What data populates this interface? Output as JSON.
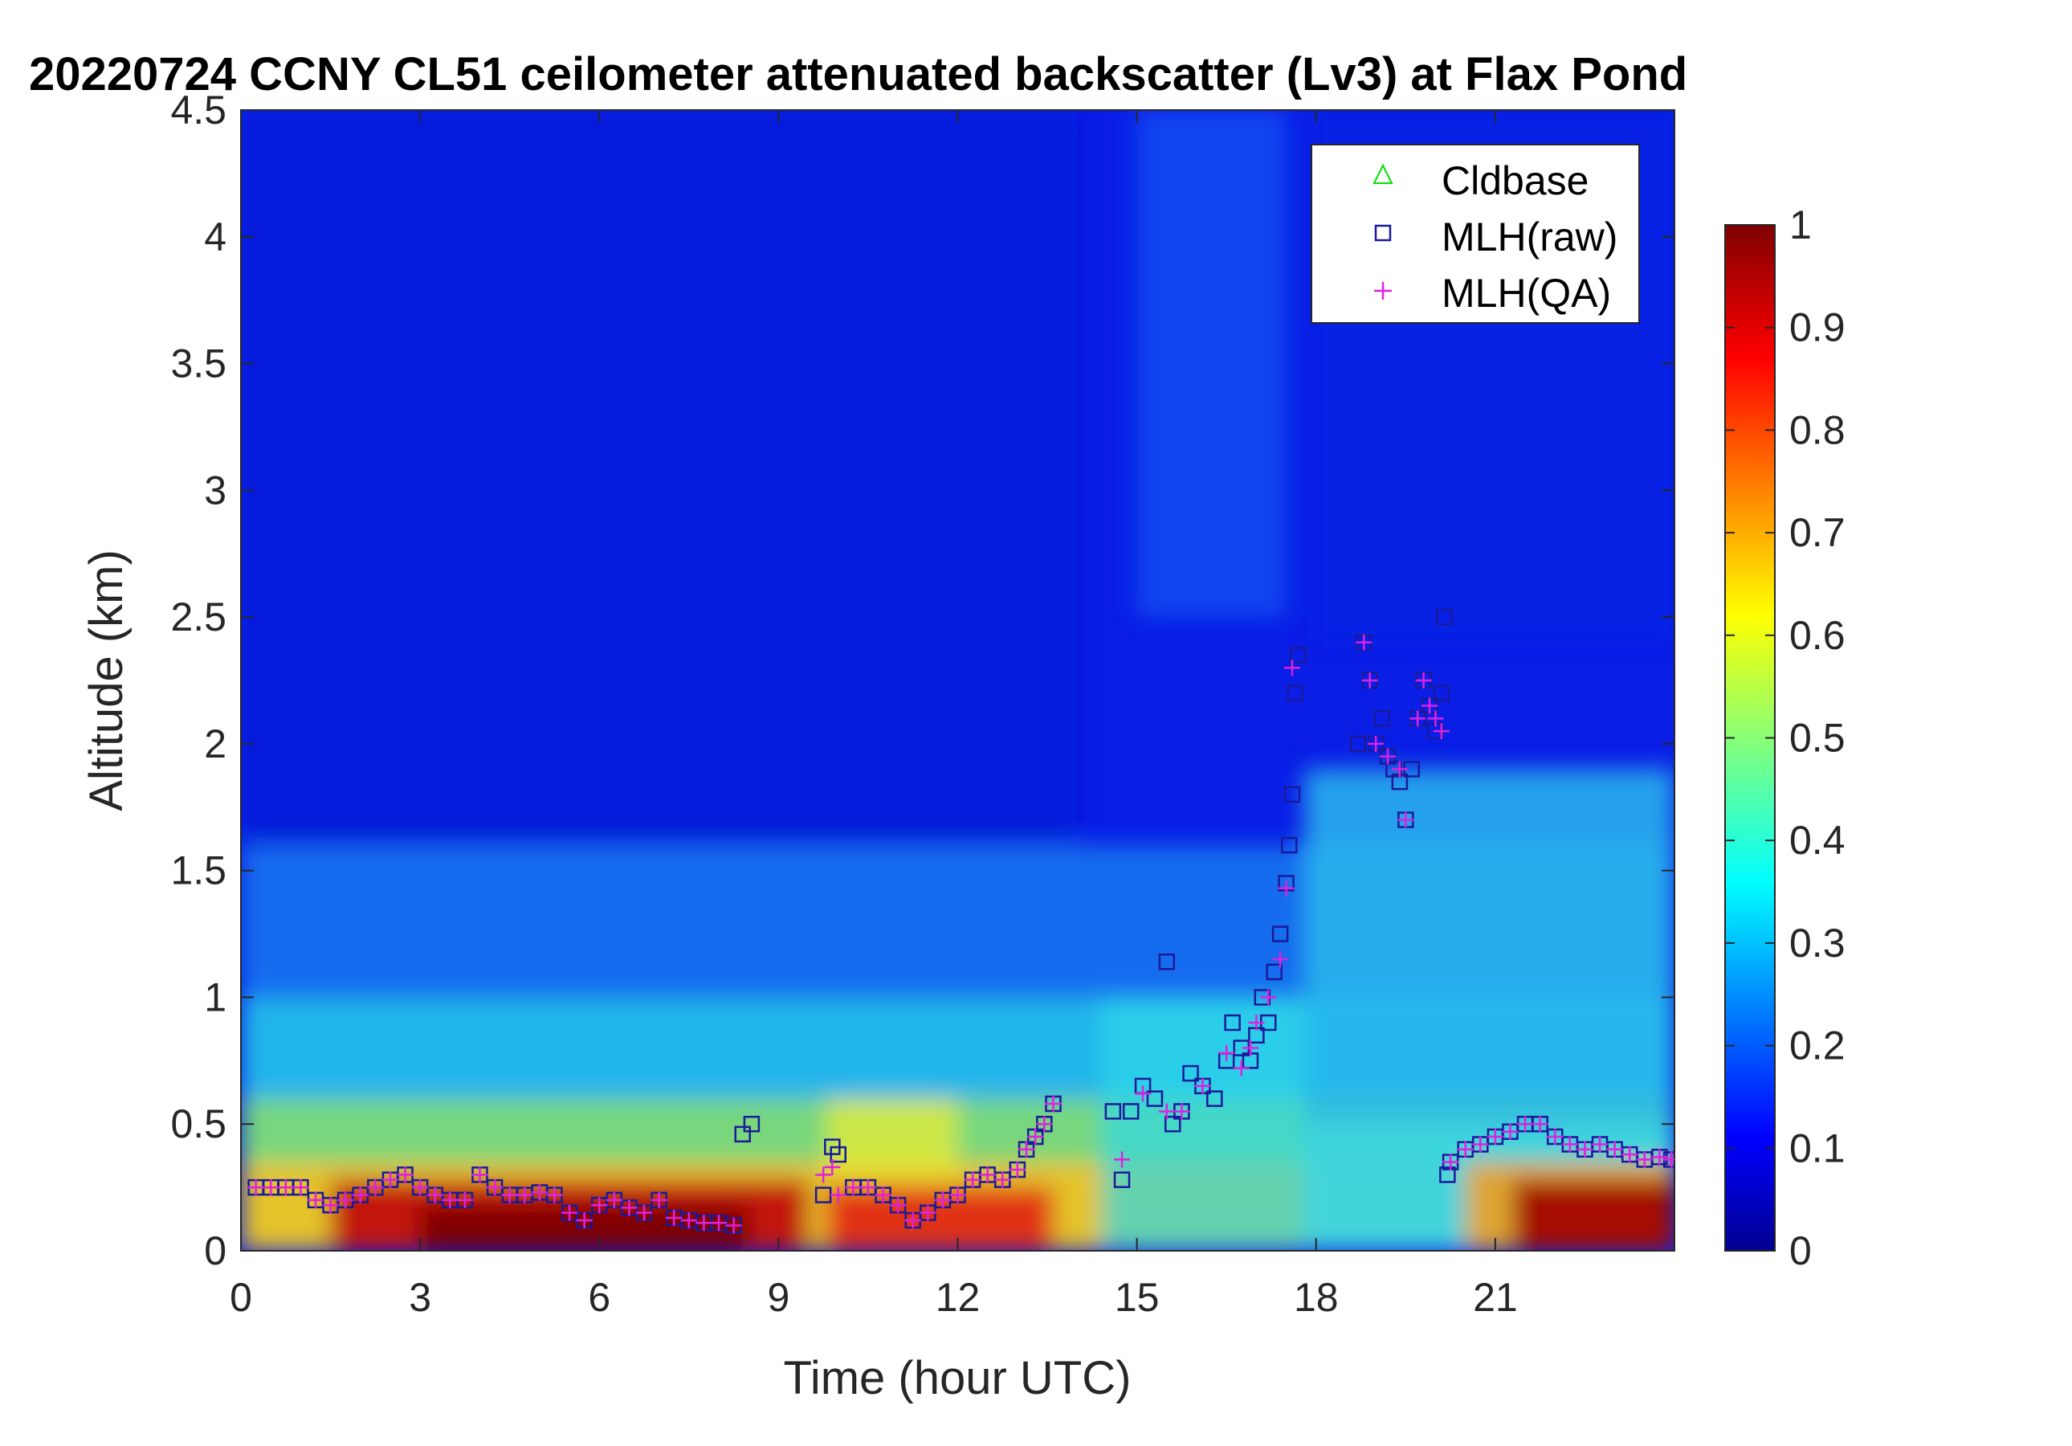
{
  "chart_data": {
    "type": "heatmap",
    "title": "20220724 CCNY CL51 ceilometer attenuated backscatter (Lv3) at Flax Pond",
    "xlabel": "Time (hour UTC)",
    "ylabel": "Altitude (km)",
    "xlim": [
      0,
      24
    ],
    "ylim": [
      0,
      4.5
    ],
    "x_ticks": [
      "0",
      "3",
      "6",
      "9",
      "12",
      "15",
      "18",
      "21"
    ],
    "y_ticks": [
      "0",
      "0.5",
      "1",
      "1.5",
      "2",
      "2.5",
      "3",
      "3.5",
      "4",
      "4.5"
    ],
    "colorbar": {
      "colormap": "jet",
      "range": [
        0,
        1
      ],
      "ticks": [
        "0",
        "0.1",
        "0.2",
        "0.3",
        "0.4",
        "0.5",
        "0.6",
        "0.7",
        "0.8",
        "0.9",
        "1"
      ]
    },
    "legend": {
      "placement": "top-right",
      "entries": [
        {
          "name": "Cldbase",
          "marker": "triangle",
          "color": "#00e000"
        },
        {
          "name": "MLH(raw)",
          "marker": "square",
          "color": "#1a1a9a"
        },
        {
          "name": "MLH(QA)",
          "marker": "plus",
          "color": "#e020e0"
        }
      ]
    },
    "series": [
      {
        "name": "MLH(raw)",
        "x": [
          0.25,
          0.5,
          0.75,
          1.0,
          1.25,
          1.5,
          1.75,
          2.0,
          2.25,
          2.5,
          2.75,
          3.0,
          3.25,
          3.5,
          3.75,
          4.0,
          4.25,
          4.5,
          4.75,
          5.0,
          5.25,
          5.5,
          5.75,
          6.0,
          6.25,
          6.5,
          6.75,
          7.0,
          7.25,
          7.5,
          7.75,
          8.0,
          8.25,
          8.4,
          8.55,
          9.75,
          9.9,
          10.0,
          10.25,
          10.5,
          10.75,
          11.0,
          11.25,
          11.5,
          11.75,
          12.0,
          12.25,
          12.5,
          12.75,
          13.0,
          13.15,
          13.3,
          13.45,
          13.6,
          14.6,
          14.75,
          14.9,
          15.1,
          15.3,
          15.5,
          15.6,
          15.75,
          15.9,
          16.1,
          16.3,
          16.5,
          16.6,
          16.75,
          16.9,
          17.0,
          17.1,
          17.2,
          17.3,
          17.4,
          17.5,
          17.55,
          17.6,
          17.65,
          17.7,
          18.7,
          18.8,
          18.9,
          19.0,
          19.1,
          19.2,
          19.3,
          19.4,
          19.5,
          19.6,
          19.7,
          19.8,
          19.9,
          20.0,
          20.1,
          20.15,
          20.2,
          20.25,
          20.5,
          20.75,
          21.0,
          21.25,
          21.5,
          21.75,
          22.0,
          22.25,
          22.5,
          22.75,
          23.0,
          23.25,
          23.5,
          23.75,
          23.95
        ],
        "y": [
          0.25,
          0.25,
          0.25,
          0.25,
          0.2,
          0.18,
          0.2,
          0.22,
          0.25,
          0.28,
          0.3,
          0.25,
          0.22,
          0.2,
          0.2,
          0.3,
          0.25,
          0.22,
          0.22,
          0.23,
          0.22,
          0.15,
          0.12,
          0.18,
          0.2,
          0.17,
          0.15,
          0.2,
          0.13,
          0.12,
          0.11,
          0.11,
          0.1,
          0.46,
          0.5,
          0.22,
          0.41,
          0.38,
          0.25,
          0.25,
          0.22,
          0.18,
          0.12,
          0.15,
          0.2,
          0.22,
          0.28,
          0.3,
          0.28,
          0.32,
          0.4,
          0.45,
          0.5,
          0.58,
          0.55,
          0.28,
          0.55,
          0.65,
          0.6,
          1.14,
          0.5,
          0.55,
          0.7,
          0.65,
          0.6,
          0.75,
          0.9,
          0.8,
          0.75,
          0.85,
          1.0,
          0.9,
          1.1,
          1.25,
          1.45,
          1.6,
          1.8,
          2.2,
          2.35,
          2.0,
          2.4,
          2.25,
          2.0,
          2.1,
          1.95,
          1.9,
          1.85,
          1.7,
          1.9,
          2.1,
          2.25,
          2.15,
          2.05,
          2.2,
          2.5,
          0.3,
          0.35,
          0.4,
          0.42,
          0.45,
          0.47,
          0.5,
          0.5,
          0.45,
          0.42,
          0.4,
          0.42,
          0.4,
          0.38,
          0.36,
          0.37,
          0.36
        ]
      },
      {
        "name": "MLH(QA)",
        "x": [
          0.25,
          0.5,
          0.75,
          1.0,
          1.25,
          1.5,
          1.75,
          2.0,
          2.25,
          2.5,
          2.75,
          3.0,
          3.25,
          3.5,
          3.75,
          4.0,
          4.25,
          4.5,
          4.75,
          5.0,
          5.25,
          5.5,
          5.75,
          6.0,
          6.25,
          6.5,
          6.75,
          7.0,
          7.25,
          7.5,
          7.75,
          8.0,
          8.25,
          9.75,
          9.9,
          10.0,
          10.25,
          10.5,
          10.75,
          11.0,
          11.25,
          11.5,
          11.75,
          12.0,
          12.25,
          12.5,
          12.75,
          13.0,
          13.15,
          13.3,
          13.45,
          13.6,
          14.75,
          15.1,
          15.5,
          15.75,
          16.1,
          16.5,
          16.75,
          16.9,
          17.0,
          17.2,
          17.4,
          17.5,
          17.6,
          18.8,
          18.9,
          19.0,
          19.2,
          19.4,
          19.5,
          19.7,
          19.8,
          19.9,
          20.0,
          20.1,
          20.25,
          20.5,
          20.75,
          21.0,
          21.25,
          21.5,
          21.75,
          22.0,
          22.25,
          22.5,
          22.75,
          23.0,
          23.25,
          23.5,
          23.75,
          23.95
        ],
        "y": [
          0.25,
          0.25,
          0.25,
          0.25,
          0.2,
          0.18,
          0.2,
          0.22,
          0.25,
          0.28,
          0.3,
          0.25,
          0.22,
          0.2,
          0.2,
          0.3,
          0.25,
          0.22,
          0.22,
          0.23,
          0.22,
          0.15,
          0.12,
          0.18,
          0.2,
          0.17,
          0.15,
          0.2,
          0.13,
          0.12,
          0.11,
          0.11,
          0.1,
          0.3,
          0.33,
          0.22,
          0.25,
          0.25,
          0.22,
          0.18,
          0.12,
          0.15,
          0.2,
          0.22,
          0.28,
          0.3,
          0.28,
          0.32,
          0.4,
          0.45,
          0.5,
          0.58,
          0.36,
          0.62,
          0.55,
          0.55,
          0.65,
          0.78,
          0.72,
          0.8,
          0.9,
          1.0,
          1.15,
          1.43,
          2.3,
          2.4,
          2.25,
          2.0,
          1.95,
          1.9,
          1.7,
          2.1,
          2.25,
          2.15,
          2.1,
          2.05,
          0.35,
          0.4,
          0.42,
          0.45,
          0.47,
          0.5,
          0.5,
          0.45,
          0.42,
          0.4,
          0.42,
          0.4,
          0.38,
          0.36,
          0.37,
          0.36
        ]
      },
      {
        "name": "Cldbase",
        "x": [],
        "y": []
      }
    ]
  }
}
